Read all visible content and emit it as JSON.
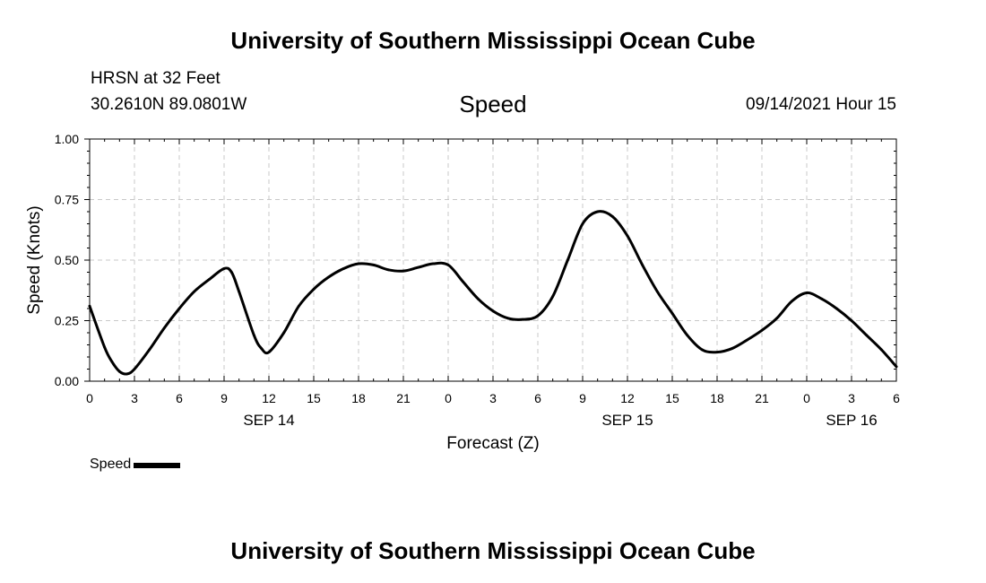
{
  "header": {
    "title": "University of Southern Mississippi Ocean Cube",
    "station": "HRSN at 32 Feet",
    "coords": "30.2610N  89.0801W",
    "chart_title": "Speed",
    "datetime": "09/14/2021 Hour 15"
  },
  "footer": {
    "title": "University of Southern Mississippi Ocean Cube"
  },
  "chart_data": {
    "type": "line",
    "title": "Speed",
    "xlabel": "Forecast (Z)",
    "ylabel": "Speed (Knots)",
    "x_unit": "hours since SEP 14 00Z",
    "xlim": [
      0,
      54
    ],
    "ylim": [
      0,
      1.0
    ],
    "grid": true,
    "x_ticks": [
      {
        "x": 0,
        "label": "0"
      },
      {
        "x": 3,
        "label": "3"
      },
      {
        "x": 6,
        "label": "6"
      },
      {
        "x": 9,
        "label": "9"
      },
      {
        "x": 12,
        "label": "12"
      },
      {
        "x": 15,
        "label": "15"
      },
      {
        "x": 18,
        "label": "18"
      },
      {
        "x": 21,
        "label": "21"
      },
      {
        "x": 24,
        "label": "0"
      },
      {
        "x": 27,
        "label": "3"
      },
      {
        "x": 30,
        "label": "6"
      },
      {
        "x": 33,
        "label": "9"
      },
      {
        "x": 36,
        "label": "12"
      },
      {
        "x": 39,
        "label": "15"
      },
      {
        "x": 42,
        "label": "18"
      },
      {
        "x": 45,
        "label": "21"
      },
      {
        "x": 48,
        "label": "0"
      },
      {
        "x": 51,
        "label": "3"
      },
      {
        "x": 54,
        "label": "6"
      }
    ],
    "y_ticks": [
      {
        "y": 0.0,
        "label": "0.00"
      },
      {
        "y": 0.25,
        "label": "0.25"
      },
      {
        "y": 0.5,
        "label": "0.50"
      },
      {
        "y": 0.75,
        "label": "0.75"
      },
      {
        "y": 1.0,
        "label": "1.00"
      }
    ],
    "date_labels": [
      {
        "x": 12,
        "label": "SEP 14"
      },
      {
        "x": 36,
        "label": "SEP 15"
      },
      {
        "x": 51,
        "label": "SEP 16"
      }
    ],
    "legend": [
      {
        "name": "Speed"
      }
    ],
    "series": [
      {
        "name": "Speed",
        "x": [
          0,
          1,
          1.5,
          2,
          2.5,
          3,
          4,
          5,
          6,
          7,
          8,
          9,
          9.5,
          10,
          11,
          11.5,
          12,
          13,
          14,
          15,
          16,
          17,
          18,
          19,
          20,
          21,
          22,
          23,
          24,
          25,
          26,
          27,
          28,
          29,
          30,
          31,
          32,
          33,
          34,
          35,
          36,
          37,
          38,
          39,
          40,
          41,
          42,
          43,
          44,
          45,
          46,
          47,
          48,
          49,
          50,
          51,
          52,
          53,
          54
        ],
        "values": [
          0.31,
          0.14,
          0.08,
          0.04,
          0.03,
          0.05,
          0.13,
          0.22,
          0.3,
          0.37,
          0.42,
          0.465,
          0.45,
          0.37,
          0.19,
          0.135,
          0.12,
          0.2,
          0.31,
          0.38,
          0.43,
          0.465,
          0.485,
          0.48,
          0.46,
          0.455,
          0.47,
          0.485,
          0.48,
          0.41,
          0.34,
          0.29,
          0.26,
          0.255,
          0.27,
          0.35,
          0.5,
          0.65,
          0.7,
          0.68,
          0.6,
          0.48,
          0.37,
          0.28,
          0.19,
          0.13,
          0.12,
          0.135,
          0.17,
          0.21,
          0.26,
          0.33,
          0.365,
          0.34,
          0.3,
          0.25,
          0.19,
          0.13,
          0.06
        ]
      }
    ]
  }
}
